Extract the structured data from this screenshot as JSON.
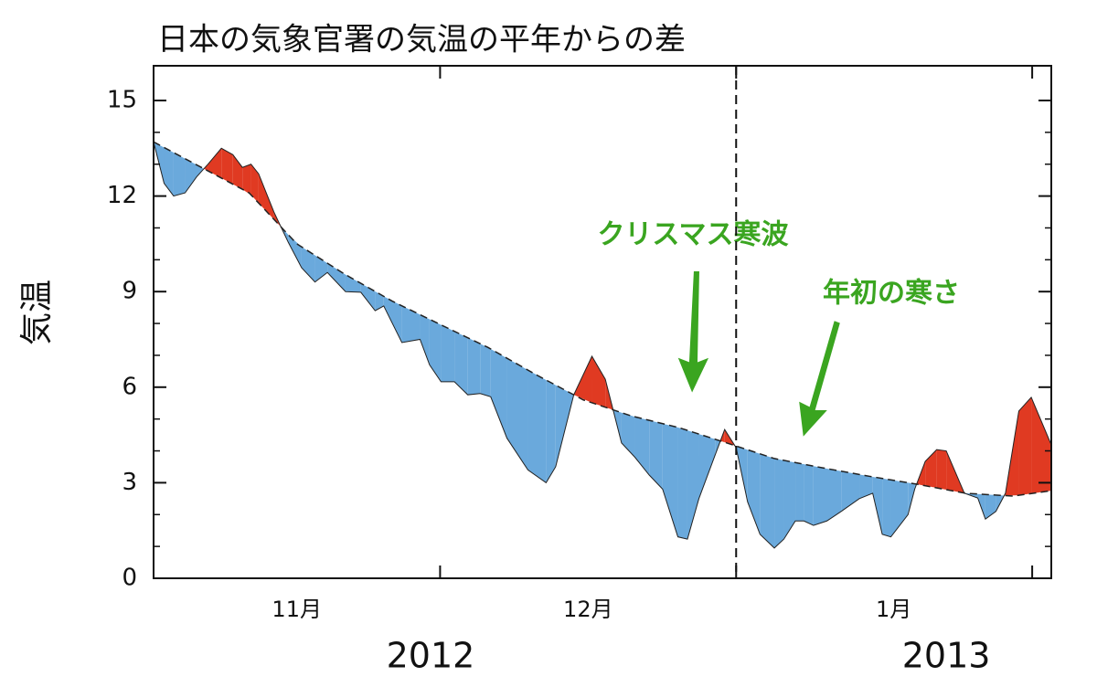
{
  "chart_data": {
    "type": "anomaly-area",
    "title": "日本の気象官署の気温の平年からの差",
    "ylabel": "気温",
    "xlim": [
      0,
      94
    ],
    "ylim": [
      0,
      15
    ],
    "yticks": [
      0,
      3,
      6,
      9,
      12,
      15
    ],
    "yminorticks": [
      1,
      2,
      4,
      5,
      7,
      8,
      10,
      11,
      13,
      14
    ],
    "xticks": [
      30,
      61,
      92
    ],
    "year_boundary": 61,
    "xlabels": [
      {
        "value": 15,
        "label": "11月"
      },
      {
        "value": 45.5,
        "label": "12月"
      },
      {
        "value": 77.5,
        "label": "1月"
      }
    ],
    "year_labels": [
      {
        "value": 29,
        "label": "2012"
      },
      {
        "value": 83,
        "label": "2013"
      }
    ],
    "above_color": "#e03a22",
    "below_color": "#6aa9dc",
    "series": [
      {
        "x": [
          0,
          1.1,
          2.1,
          3.3,
          4.5,
          5.7,
          7.1,
          8.3,
          9.3,
          10.2,
          11.0,
          12.6,
          14.1,
          15.5,
          16.9,
          18.2,
          20.1,
          21.7,
          23.2,
          24.1,
          26.0,
          27.9,
          28.9,
          30.1,
          31.5,
          32.9,
          34.2,
          35.3,
          37.0,
          39.2,
          41.1,
          42.1,
          44.0,
          45.9,
          47.3,
          49.0,
          50.4,
          51.9,
          53.3,
          54.9,
          55.9,
          57.1,
          58.8,
          59.8,
          61.0,
          62.2,
          63.5,
          65.0,
          66.0,
          67.2,
          68.1,
          69.1,
          70.5,
          72.0,
          73.9,
          75.3,
          76.3,
          77.2,
          79.0,
          79.7,
          80.8,
          82.0,
          83.0,
          84.9,
          86.3,
          87.1,
          88.2,
          89.2,
          90.6,
          91.9,
          94
        ],
        "values": [
          13.7,
          12.4,
          12.0,
          12.1,
          12.6,
          13.0,
          13.5,
          13.3,
          12.9,
          13.0,
          12.7,
          11.5,
          10.55,
          9.75,
          9.3,
          9.6,
          9.0,
          8.98,
          8.4,
          8.55,
          7.4,
          7.5,
          6.7,
          6.17,
          6.17,
          5.76,
          5.8,
          5.7,
          4.4,
          3.4,
          3.0,
          3.5,
          5.76,
          6.97,
          6.25,
          4.25,
          3.8,
          3.24,
          2.8,
          1.3,
          1.23,
          2.5,
          3.87,
          4.67,
          4.1,
          2.4,
          1.38,
          0.95,
          1.23,
          1.8,
          1.8,
          1.66,
          1.8,
          2.1,
          2.5,
          2.67,
          1.38,
          1.3,
          2.0,
          2.8,
          3.67,
          4.04,
          4.0,
          2.67,
          2.52,
          1.86,
          2.1,
          2.67,
          5.25,
          5.68,
          4.19
        ],
        "color": "#222222"
      },
      {
        "x": [
          0,
          5,
          10,
          15,
          20,
          25,
          30,
          35,
          40,
          45,
          50,
          55,
          60,
          65,
          70,
          75,
          80,
          85,
          90,
          94
        ],
        "values": [
          13.7,
          12.9,
          12.1,
          10.5,
          9.55,
          8.7,
          7.97,
          7.25,
          6.4,
          5.6,
          5.1,
          4.73,
          4.25,
          3.76,
          3.47,
          3.2,
          2.95,
          2.67,
          2.58,
          2.75
        ],
        "color": "#222222",
        "dashed": true
      }
    ],
    "annotations": [
      {
        "text": "クリスマス寒波"
      },
      {
        "text": "年初の寒さ"
      }
    ]
  }
}
